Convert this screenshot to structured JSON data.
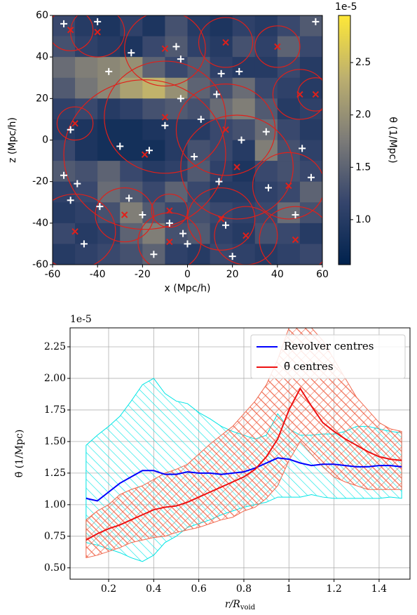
{
  "chart_data": [
    {
      "type": "heatmap",
      "xlabel": "x (Mpc/h)",
      "ylabel": "z (Mpc/h)",
      "colorbar_label": "θ (1/Mpc)",
      "offset_text": "1e-5",
      "xlim": [
        -60,
        60
      ],
      "ylim": [
        -60,
        60
      ],
      "xticks": [
        -60,
        -40,
        -20,
        0,
        20,
        40,
        60
      ],
      "yticks": [
        -60,
        -40,
        -20,
        0,
        20,
        40,
        60
      ],
      "clim": [
        0.57,
        2.95
      ],
      "cticks": [
        {
          "value": 1.0,
          "label": "1.0"
        },
        {
          "value": 1.5,
          "label": "1.5"
        },
        {
          "value": 2.0,
          "label": "2.0"
        },
        {
          "value": 2.5,
          "label": "2.5"
        }
      ],
      "values": [
        [
          1.2,
          1.0,
          0.9,
          1.1,
          0.9,
          1.3,
          1.0,
          0.9,
          1.1,
          1.0,
          1.2,
          1.4
        ],
        [
          1.3,
          1.1,
          1.0,
          0.9,
          1.2,
          1.4,
          1.1,
          1.0,
          1.3,
          1.1,
          1.5,
          1.2
        ],
        [
          1.6,
          1.8,
          1.9,
          2.0,
          1.5,
          1.2,
          1.4,
          1.1,
          1.0,
          1.0,
          1.2,
          1.0
        ],
        [
          1.4,
          1.7,
          1.9,
          2.2,
          2.4,
          2.0,
          1.5,
          1.3,
          1.6,
          1.2,
          1.1,
          1.0
        ],
        [
          1.1,
          1.2,
          1.0,
          1.1,
          1.3,
          1.4,
          1.3,
          1.6,
          1.8,
          1.4,
          1.0,
          1.1
        ],
        [
          1.0,
          0.9,
          0.8,
          0.8,
          0.9,
          1.0,
          1.0,
          1.2,
          1.3,
          1.6,
          1.2,
          1.0
        ],
        [
          1.2,
          0.9,
          0.8,
          0.8,
          0.8,
          1.0,
          1.3,
          1.2,
          1.0,
          1.8,
          1.3,
          1.1
        ],
        [
          1.4,
          1.3,
          1.5,
          1.2,
          1.0,
          1.1,
          1.4,
          1.1,
          0.9,
          1.2,
          1.3,
          1.2
        ],
        [
          1.1,
          1.2,
          1.6,
          1.4,
          1.2,
          1.5,
          1.2,
          1.0,
          1.0,
          1.1,
          1.2,
          1.5
        ],
        [
          1.0,
          1.1,
          1.3,
          1.8,
          1.4,
          1.2,
          1.3,
          1.2,
          1.1,
          1.2,
          1.6,
          1.3
        ],
        [
          1.2,
          1.0,
          1.1,
          1.5,
          1.8,
          1.3,
          1.4,
          1.1,
          1.0,
          1.3,
          1.2,
          1.0
        ],
        [
          1.0,
          1.1,
          1.2,
          1.3,
          1.5,
          1.1,
          1.0,
          1.2,
          1.1,
          1.0,
          1.1,
          1.2
        ]
      ],
      "circles": [
        {
          "x": -52,
          "z": 53,
          "r": 10
        },
        {
          "x": -40,
          "z": 52,
          "r": 12
        },
        {
          "x": -10,
          "z": 44,
          "r": 18
        },
        {
          "x": 17,
          "z": 47,
          "r": 12
        },
        {
          "x": 40,
          "z": 45,
          "r": 10
        },
        {
          "x": 50,
          "z": 22,
          "r": 12
        },
        {
          "x": 57,
          "z": 22,
          "r": 8
        },
        {
          "x": -50,
          "z": 8,
          "r": 8
        },
        {
          "x": -10,
          "z": 11,
          "r": 27
        },
        {
          "x": -19,
          "z": -7,
          "r": 36
        },
        {
          "x": 17,
          "z": 5,
          "r": 22
        },
        {
          "x": 22,
          "z": -13,
          "r": 25
        },
        {
          "x": 45,
          "z": -22,
          "r": 16
        },
        {
          "x": -28,
          "z": -36,
          "r": 13
        },
        {
          "x": -8,
          "z": -34,
          "r": 8
        },
        {
          "x": 15,
          "z": -38,
          "r": 15
        },
        {
          "x": -8,
          "z": -49,
          "r": 14
        },
        {
          "x": 26,
          "z": -46,
          "r": 14
        },
        {
          "x": 48,
          "z": -48,
          "r": 16
        },
        {
          "x": -50,
          "z": -44,
          "r": 18
        }
      ],
      "points": [
        {
          "x": -40,
          "z": 57
        },
        {
          "x": -55,
          "z": 56
        },
        {
          "x": -25,
          "z": 42
        },
        {
          "x": -35,
          "z": 33
        },
        {
          "x": -5,
          "z": 45
        },
        {
          "x": -3,
          "z": 39
        },
        {
          "x": 15,
          "z": 32
        },
        {
          "x": 23,
          "z": 33
        },
        {
          "x": 13,
          "z": 22
        },
        {
          "x": -3,
          "z": 20
        },
        {
          "x": -52,
          "z": 5
        },
        {
          "x": -30,
          "z": -3
        },
        {
          "x": -17,
          "z": -5
        },
        {
          "x": -10,
          "z": 7
        },
        {
          "x": 6,
          "z": 10
        },
        {
          "x": 35,
          "z": 4
        },
        {
          "x": 24,
          "z": 0
        },
        {
          "x": 3,
          "z": -8
        },
        {
          "x": -55,
          "z": -17
        },
        {
          "x": -49,
          "z": -21
        },
        {
          "x": -52,
          "z": -29
        },
        {
          "x": -39,
          "z": -32
        },
        {
          "x": -26,
          "z": -28
        },
        {
          "x": -20,
          "z": -36
        },
        {
          "x": -8,
          "z": -40
        },
        {
          "x": -2,
          "z": -45
        },
        {
          "x": 0,
          "z": -50
        },
        {
          "x": 17,
          "z": -41
        },
        {
          "x": 14,
          "z": -20
        },
        {
          "x": 36,
          "z": -23
        },
        {
          "x": 51,
          "z": -4
        },
        {
          "x": 55,
          "z": -18
        },
        {
          "x": 57,
          "z": 57
        },
        {
          "x": -15,
          "z": -55
        },
        {
          "x": 20,
          "z": -56
        },
        {
          "x": 48,
          "z": -36
        },
        {
          "x": -46,
          "z": -50
        }
      ]
    },
    {
      "type": "line_band",
      "xlabel": "r/R",
      "xlabel_sub": "void",
      "ylabel": "θ̄ (1/Mpc)",
      "offset_text": "1e-5",
      "grid": true,
      "xlim": [
        0.029,
        1.537
      ],
      "ylim": [
        0.41,
        2.4
      ],
      "xticks": [
        0.2,
        0.4,
        0.6,
        0.8,
        1.0,
        1.2,
        1.4
      ],
      "yticks": [
        {
          "value": 0.5,
          "label": "0.50"
        },
        {
          "value": 0.75,
          "label": "0.75"
        },
        {
          "value": 1.0,
          "label": "1.00"
        },
        {
          "value": 1.25,
          "label": "1.25"
        },
        {
          "value": 1.5,
          "label": "1.50"
        },
        {
          "value": 1.75,
          "label": "1.75"
        },
        {
          "value": 2.0,
          "label": "2.00"
        },
        {
          "value": 2.25,
          "label": "2.25"
        }
      ],
      "x": [
        0.1,
        0.15,
        0.2,
        0.25,
        0.3,
        0.35,
        0.4,
        0.45,
        0.5,
        0.55,
        0.6,
        0.65,
        0.7,
        0.75,
        0.8,
        0.85,
        0.9,
        0.95,
        1.0,
        1.05,
        1.1,
        1.15,
        1.2,
        1.25,
        1.3,
        1.35,
        1.4,
        1.45,
        1.5
      ],
      "series": [
        {
          "name": "Revolver centres",
          "color": "#0000ff",
          "band_color": "#00e5e5",
          "values": [
            1.05,
            1.03,
            1.1,
            1.17,
            1.22,
            1.27,
            1.27,
            1.24,
            1.24,
            1.26,
            1.25,
            1.25,
            1.24,
            1.25,
            1.26,
            1.29,
            1.33,
            1.37,
            1.36,
            1.33,
            1.31,
            1.32,
            1.32,
            1.31,
            1.3,
            1.3,
            1.31,
            1.31,
            1.3
          ],
          "high": [
            1.47,
            1.55,
            1.62,
            1.7,
            1.82,
            1.95,
            2.0,
            1.88,
            1.82,
            1.8,
            1.73,
            1.68,
            1.62,
            1.58,
            1.55,
            1.52,
            1.55,
            1.72,
            1.6,
            1.55,
            1.55,
            1.56,
            1.56,
            1.58,
            1.62,
            1.62,
            1.6,
            1.58,
            1.57
          ],
          "low": [
            0.7,
            0.68,
            0.65,
            0.62,
            0.58,
            0.55,
            0.6,
            0.7,
            0.75,
            0.82,
            0.85,
            0.88,
            0.92,
            0.95,
            0.98,
            1.0,
            1.02,
            1.06,
            1.06,
            1.06,
            1.08,
            1.06,
            1.05,
            1.05,
            1.05,
            1.05,
            1.05,
            1.06,
            1.05
          ]
        },
        {
          "name": "θ̄ centres",
          "color": "#ee1111",
          "band_color": "#f0694f",
          "values": [
            0.72,
            0.77,
            0.81,
            0.84,
            0.88,
            0.92,
            0.96,
            0.98,
            0.99,
            1.02,
            1.06,
            1.1,
            1.14,
            1.18,
            1.22,
            1.28,
            1.38,
            1.52,
            1.75,
            1.92,
            1.78,
            1.65,
            1.58,
            1.52,
            1.47,
            1.42,
            1.38,
            1.36,
            1.35
          ],
          "high": [
            0.88,
            0.95,
            1.0,
            1.08,
            1.12,
            1.15,
            1.2,
            1.25,
            1.28,
            1.32,
            1.4,
            1.48,
            1.55,
            1.62,
            1.72,
            1.82,
            1.95,
            2.15,
            2.4,
            2.4,
            2.4,
            2.3,
            2.15,
            2.0,
            1.85,
            1.75,
            1.65,
            1.6,
            1.58
          ],
          "low": [
            0.58,
            0.6,
            0.63,
            0.66,
            0.7,
            0.72,
            0.74,
            0.75,
            0.78,
            0.8,
            0.82,
            0.85,
            0.88,
            0.9,
            0.95,
            0.98,
            1.05,
            1.15,
            1.35,
            1.5,
            1.4,
            1.3,
            1.22,
            1.18,
            1.15,
            1.12,
            1.12,
            1.12,
            1.12
          ]
        }
      ]
    }
  ]
}
